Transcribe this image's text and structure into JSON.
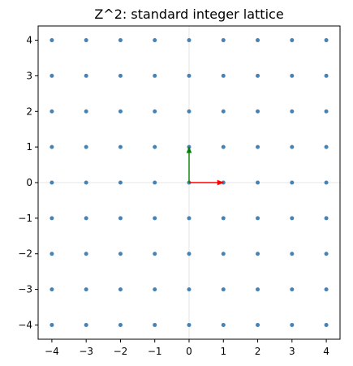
{
  "chart_data": {
    "type": "scatter",
    "title": "Z^2: standard integer lattice",
    "xlabel": "",
    "ylabel": "",
    "xlim": [
      -4.4,
      4.4
    ],
    "ylim": [
      -4.4,
      4.4
    ],
    "aspect": "equal",
    "grid": "axes lines only",
    "x_ticks": [
      -4,
      -3,
      -2,
      -1,
      0,
      1,
      2,
      3,
      4
    ],
    "y_ticks": [
      -4,
      -3,
      -2,
      -1,
      0,
      1,
      2,
      3,
      4
    ],
    "x_tick_labels": [
      "−4",
      "−3",
      "−2",
      "−1",
      "0",
      "1",
      "2",
      "3",
      "4"
    ],
    "y_tick_labels": [
      "−4",
      "−3",
      "−2",
      "−1",
      "0",
      "1",
      "2",
      "3",
      "4"
    ],
    "series": [
      {
        "name": "",
        "color": "#4682b4",
        "lattice_range": [
          -4,
          4
        ],
        "step": 1
      }
    ],
    "vectors": [
      {
        "from": [
          0,
          0
        ],
        "to": [
          1,
          0
        ],
        "color": "#ff0000"
      },
      {
        "from": [
          0,
          0
        ],
        "to": [
          0,
          1
        ],
        "color": "#008000"
      }
    ]
  },
  "colors": {
    "points": "#4682b4",
    "basis_x": "#ff0000",
    "basis_y": "#008000",
    "axes_lines": "#dddddd",
    "frame": "#000000"
  }
}
